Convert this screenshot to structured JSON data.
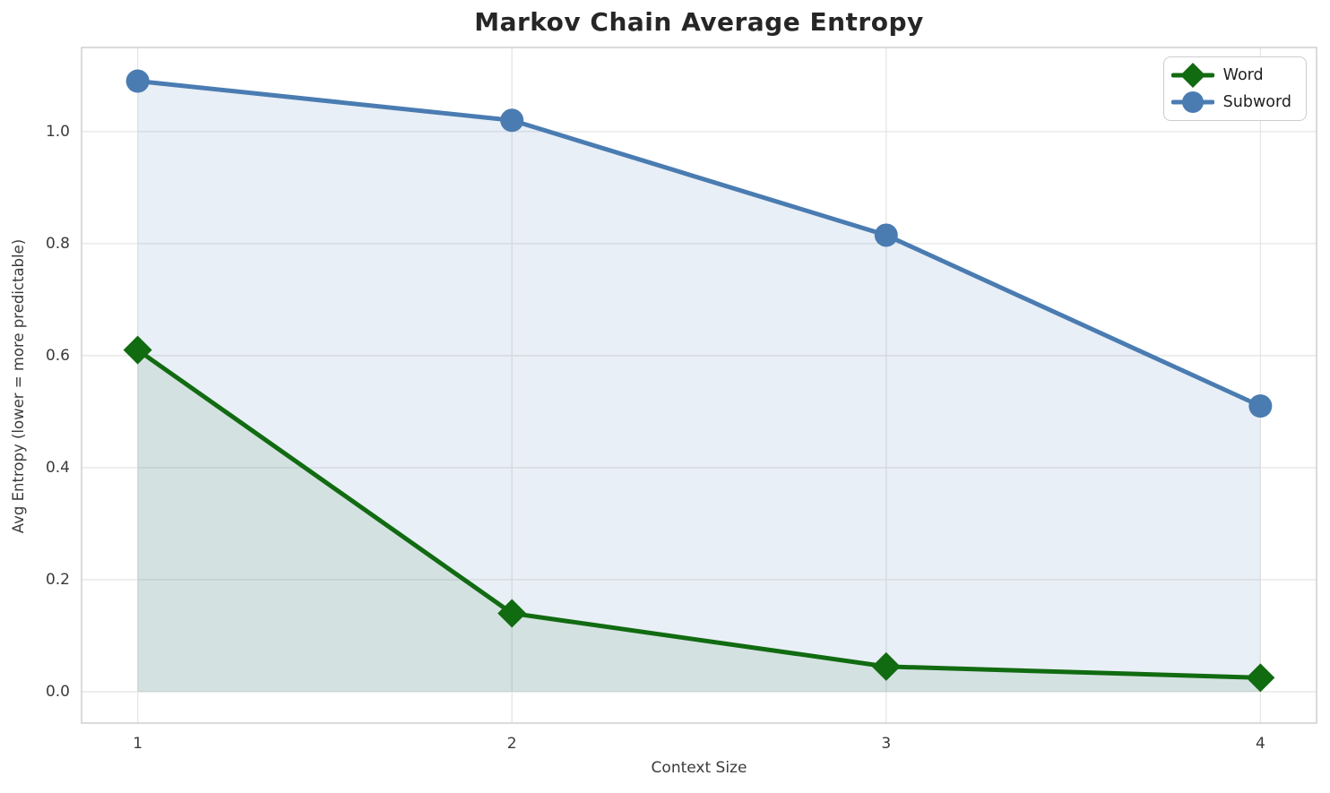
{
  "chart_data": {
    "type": "line",
    "title": "Markov Chain Average Entropy",
    "xlabel": "Context Size",
    "ylabel": "Avg Entropy (lower = more predictable)",
    "x": [
      1,
      2,
      3,
      4
    ],
    "series": [
      {
        "name": "Word",
        "values": [
          0.61,
          0.14,
          0.045,
          0.025
        ],
        "color": "#116b11",
        "fill": "rgba(17,107,17,0.10)",
        "marker": "diamond"
      },
      {
        "name": "Subword",
        "values": [
          1.09,
          1.02,
          0.815,
          0.51
        ],
        "color": "#4a7cb2",
        "fill": "rgba(74,124,178,0.12)",
        "marker": "circle"
      }
    ],
    "x_tick_labels": [
      "1",
      "2",
      "3",
      "4"
    ],
    "y_ticks": [
      0.0,
      0.2,
      0.4,
      0.6,
      0.8,
      1.0
    ],
    "y_tick_labels": [
      "0.0",
      "0.2",
      "0.4",
      "0.6",
      "0.8",
      "1.0"
    ],
    "xlim": [
      0.85,
      4.15
    ],
    "ylim": [
      -0.056,
      1.15
    ],
    "grid": true,
    "legend_position": "upper right",
    "area_fill_baseline": 0
  }
}
